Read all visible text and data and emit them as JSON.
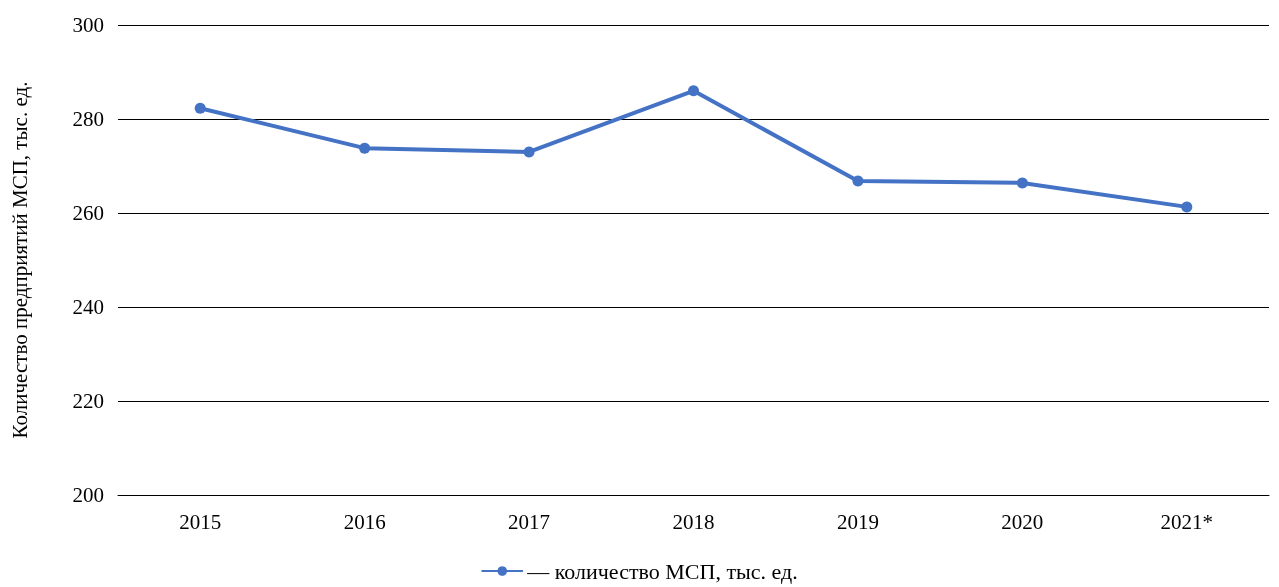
{
  "chart_data": {
    "type": "line",
    "ylabel": "Количество предприятий МСП, тыс. ед.",
    "categories": [
      "2015",
      "2016",
      "2017",
      "2018",
      "2019",
      "2020",
      "2021*"
    ],
    "series": [
      {
        "name": "— количество МСП, тыс. ед.",
        "color": "#4472c4",
        "values": [
          282.3,
          273.8,
          273.0,
          286.0,
          266.8,
          266.4,
          261.3
        ]
      }
    ],
    "ylim": [
      200,
      300
    ],
    "yticks": [
      200,
      220,
      240,
      260,
      280,
      300
    ],
    "grid": "y",
    "legend": "bottom",
    "marker": "circle",
    "line_style": "solid"
  }
}
